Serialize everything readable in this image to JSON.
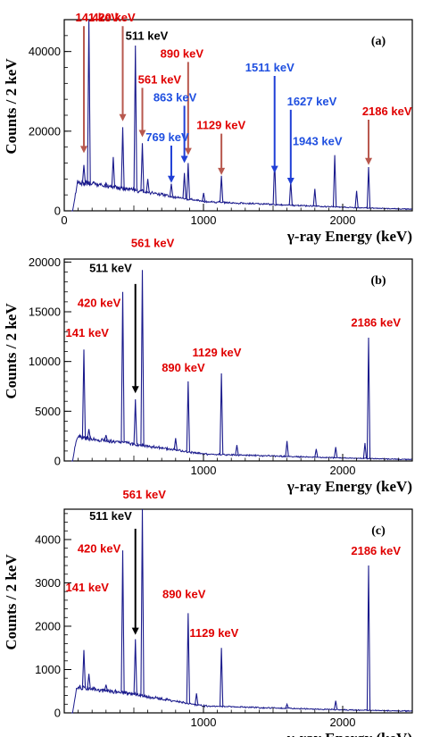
{
  "colors": {
    "spectrum": "#1a1a8c",
    "red_label": "#e00000",
    "blue_label": "#1f4fe0",
    "black_label": "#000000",
    "red_arrow": "#b8584e",
    "blue_arrow": "#1f3fd6",
    "black_arrow": "#000000"
  },
  "chart_data": [
    {
      "type": "line",
      "panel_label": "(a)",
      "xlabel": "γ-ray Energy (keV)",
      "ylabel": "Counts / 2 keV",
      "xlim": [
        0,
        2500
      ],
      "ylim": [
        0,
        48000
      ],
      "xticks": [
        0,
        1000,
        2000
      ],
      "xtick_labels": [
        "0",
        "1000",
        "2000"
      ],
      "yticks": [
        0,
        20000,
        40000
      ],
      "ytick_labels": [
        "0",
        "20000",
        "40000"
      ],
      "grid": false,
      "continuum": {
        "start_energy": 60,
        "edge_energy": 95,
        "level_at_edge": 7200,
        "level_at_500": 5200,
        "level_at_1000": 2300,
        "level_at_2000": 900,
        "level_at_2500": 400
      },
      "peaks": [
        {
          "energy": 141,
          "counts": 11500
        },
        {
          "energy": 177,
          "counts": 48000
        },
        {
          "energy": 300,
          "counts": 7000
        },
        {
          "energy": 352,
          "counts": 13500
        },
        {
          "energy": 420,
          "counts": 21000
        },
        {
          "energy": 511,
          "counts": 41500
        },
        {
          "energy": 561,
          "counts": 17000
        },
        {
          "energy": 600,
          "counts": 8000
        },
        {
          "energy": 769,
          "counts": 6800
        },
        {
          "energy": 863,
          "counts": 9500
        },
        {
          "energy": 890,
          "counts": 12000
        },
        {
          "energy": 1001,
          "counts": 4500
        },
        {
          "energy": 1129,
          "counts": 8800
        },
        {
          "energy": 1511,
          "counts": 13000
        },
        {
          "energy": 1627,
          "counts": 7500
        },
        {
          "energy": 1800,
          "counts": 5500
        },
        {
          "energy": 1943,
          "counts": 14000
        },
        {
          "energy": 2100,
          "counts": 5000
        },
        {
          "energy": 2186,
          "counts": 11000
        }
      ],
      "annotations": [
        {
          "text": "141 keV",
          "color": "red",
          "energy": 80,
          "counts": 47500,
          "arrow_to": [
            141,
            14500
          ],
          "arrow_color": "red"
        },
        {
          "text": "177 keV",
          "color": "blue",
          "energy": 170,
          "counts": 53500,
          "arrow_to": null
        },
        {
          "text": "420 keV",
          "color": "red",
          "energy": 200,
          "counts": 47500,
          "arrow_to": [
            420,
            22500
          ],
          "arrow_color": "red"
        },
        {
          "text": "511 keV",
          "color": "black",
          "energy": 440,
          "counts": 43000,
          "arrow_to": null
        },
        {
          "text": "890 keV",
          "color": "red",
          "energy": 690,
          "counts": 38500,
          "arrow_to": [
            890,
            14000
          ],
          "arrow_color": "red"
        },
        {
          "text": "561 keV",
          "color": "red",
          "energy": 530,
          "counts": 32000,
          "arrow_to": [
            561,
            18500
          ],
          "arrow_color": "red"
        },
        {
          "text": "863 keV",
          "color": "blue",
          "energy": 640,
          "counts": 27500,
          "arrow_to": [
            863,
            12000
          ],
          "arrow_color": "blue"
        },
        {
          "text": "1511 keV",
          "color": "blue",
          "energy": 1300,
          "counts": 35000,
          "arrow_to": [
            1511,
            9500
          ],
          "arrow_color": "blue"
        },
        {
          "text": "1627 keV",
          "color": "blue",
          "energy": 1600,
          "counts": 26500,
          "arrow_to": [
            1627,
            6500
          ],
          "arrow_color": "blue"
        },
        {
          "text": "769 keV",
          "color": "blue",
          "energy": 585,
          "counts": 17500,
          "arrow_to": [
            769,
            7000
          ],
          "arrow_color": "blue"
        },
        {
          "text": "1129 keV",
          "color": "red",
          "energy": 950,
          "counts": 20500,
          "arrow_to": [
            1129,
            9000
          ],
          "arrow_color": "red"
        },
        {
          "text": "2186 keV",
          "color": "red",
          "energy": 2140,
          "counts": 24000,
          "arrow_to": [
            2186,
            11500
          ],
          "arrow_color": "red"
        },
        {
          "text": "1943 keV",
          "color": "blue",
          "energy": 1640,
          "counts": 16500,
          "arrow_to": null
        }
      ]
    },
    {
      "type": "line",
      "panel_label": "(b)",
      "xlabel": "γ-ray Energy (keV)",
      "ylabel": "Counts / 2 keV",
      "xlim": [
        0,
        2500
      ],
      "ylim": [
        0,
        20300
      ],
      "xticks": [
        1000,
        2000
      ],
      "xtick_labels": [
        "1000",
        "2000"
      ],
      "yticks": [
        0,
        5000,
        10000,
        15000,
        20000
      ],
      "ytick_labels": [
        "0",
        "5000",
        "10000",
        "15000",
        "20000"
      ],
      "grid": false,
      "continuum": {
        "start_energy": 60,
        "edge_energy": 90,
        "level_at_edge": 2400,
        "level_at_500": 1700,
        "level_at_1000": 700,
        "level_at_2000": 300,
        "level_at_2500": 150
      },
      "peaks": [
        {
          "energy": 141,
          "counts": 11200
        },
        {
          "energy": 177,
          "counts": 3200
        },
        {
          "energy": 300,
          "counts": 2600
        },
        {
          "energy": 420,
          "counts": 17000
        },
        {
          "energy": 511,
          "counts": 6200
        },
        {
          "energy": 561,
          "counts": 19200
        },
        {
          "energy": 800,
          "counts": 2300
        },
        {
          "energy": 890,
          "counts": 8000
        },
        {
          "energy": 1129,
          "counts": 8800
        },
        {
          "energy": 1240,
          "counts": 1600
        },
        {
          "energy": 1600,
          "counts": 2000
        },
        {
          "energy": 1810,
          "counts": 1200
        },
        {
          "energy": 1950,
          "counts": 1400
        },
        {
          "energy": 2160,
          "counts": 1800
        },
        {
          "energy": 2186,
          "counts": 12400
        }
      ],
      "annotations": [
        {
          "text": "561 keV",
          "color": "red",
          "energy": 480,
          "counts": 21500,
          "arrow_to": null
        },
        {
          "text": "511 keV",
          "color": "black",
          "energy": 180,
          "counts": 19000,
          "arrow_to": [
            511,
            6800
          ],
          "arrow_color": "black",
          "arrow_from": [
            511,
            17800
          ]
        },
        {
          "text": "420 keV",
          "color": "red",
          "energy": 95,
          "counts": 15500,
          "arrow_to": null
        },
        {
          "text": "141 keV",
          "color": "red",
          "energy": 10,
          "counts": 12500,
          "arrow_to": null
        },
        {
          "text": "1129 keV",
          "color": "red",
          "energy": 920,
          "counts": 10500,
          "arrow_to": null
        },
        {
          "text": "890 keV",
          "color": "red",
          "energy": 700,
          "counts": 9000,
          "arrow_to": null
        },
        {
          "text": "2186 keV",
          "color": "red",
          "energy": 2060,
          "counts": 13500,
          "arrow_to": null
        }
      ]
    },
    {
      "type": "line",
      "panel_label": "(c)",
      "xlabel": "γ-ray Energy (keV)",
      "ylabel": "Counts / 2 keV",
      "xlim": [
        0,
        2500
      ],
      "ylim": [
        0,
        4700
      ],
      "xticks": [
        1000,
        2000
      ],
      "xtick_labels": [
        "1000",
        "2000"
      ],
      "yticks": [
        0,
        1000,
        2000,
        3000,
        4000
      ],
      "ytick_labels": [
        "0",
        "1000",
        "2000",
        "3000",
        "4000"
      ],
      "grid": false,
      "continuum": {
        "start_energy": 60,
        "edge_energy": 90,
        "level_at_edge": 600,
        "level_at_500": 430,
        "level_at_1000": 160,
        "level_at_2000": 70,
        "level_at_2500": 40
      },
      "peaks": [
        {
          "energy": 141,
          "counts": 1450
        },
        {
          "energy": 177,
          "counts": 900
        },
        {
          "energy": 300,
          "counts": 650
        },
        {
          "energy": 420,
          "counts": 3750
        },
        {
          "energy": 511,
          "counts": 1700
        },
        {
          "energy": 561,
          "counts": 4700
        },
        {
          "energy": 890,
          "counts": 2300
        },
        {
          "energy": 950,
          "counts": 450
        },
        {
          "energy": 1129,
          "counts": 1500
        },
        {
          "energy": 1600,
          "counts": 200
        },
        {
          "energy": 1950,
          "counts": 280
        },
        {
          "energy": 2186,
          "counts": 3400
        }
      ],
      "annotations": [
        {
          "text": "561 keV",
          "color": "red",
          "energy": 420,
          "counts": 4950,
          "arrow_to": null
        },
        {
          "text": "511 keV",
          "color": "black",
          "energy": 180,
          "counts": 4450,
          "arrow_to": [
            511,
            1800
          ],
          "arrow_color": "black",
          "arrow_from": [
            511,
            4250
          ]
        },
        {
          "text": "420 keV",
          "color": "red",
          "energy": 95,
          "counts": 3700,
          "arrow_to": null
        },
        {
          "text": "141 keV",
          "color": "red",
          "energy": 10,
          "counts": 2800,
          "arrow_to": null
        },
        {
          "text": "890 keV",
          "color": "red",
          "energy": 705,
          "counts": 2650,
          "arrow_to": null
        },
        {
          "text": "1129 keV",
          "color": "red",
          "energy": 900,
          "counts": 1750,
          "arrow_to": null
        },
        {
          "text": "2186 keV",
          "color": "red",
          "energy": 2060,
          "counts": 3650,
          "arrow_to": null
        }
      ]
    }
  ]
}
